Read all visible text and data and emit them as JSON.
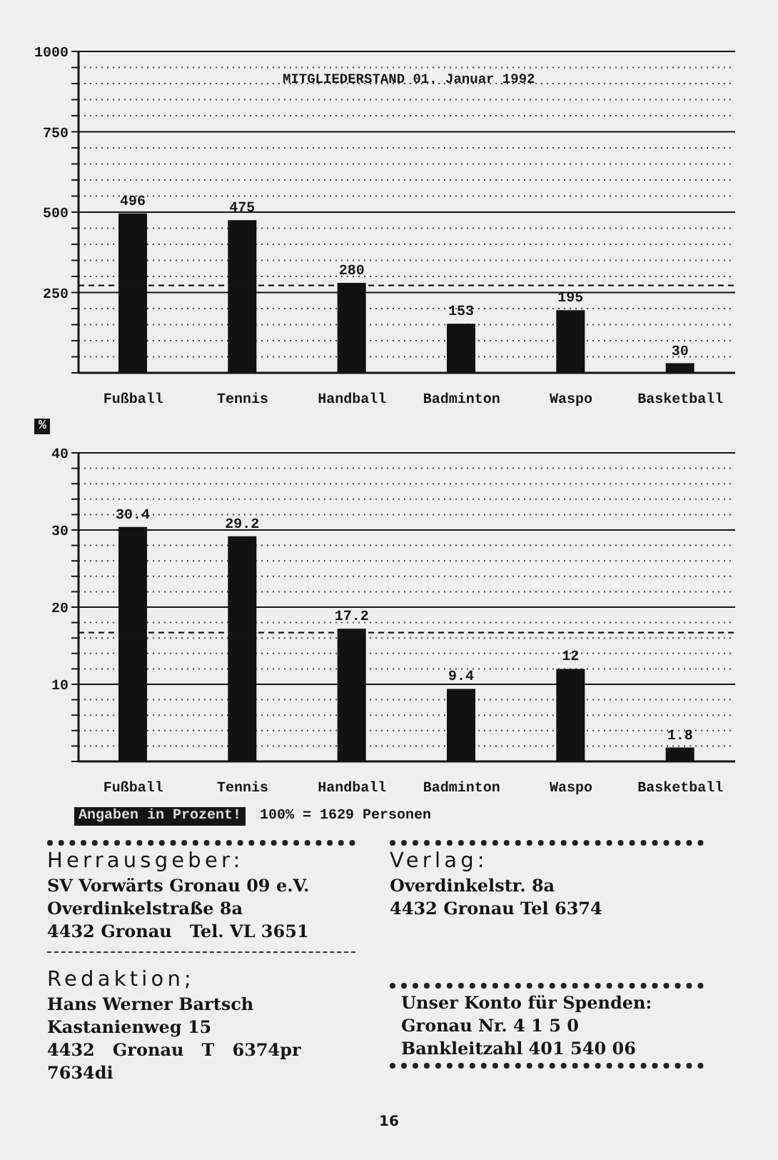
{
  "chart_data": [
    {
      "type": "bar",
      "title": "MITGLIEDERSTAND 01. Januar 1992",
      "categories": [
        "Fußball",
        "Tennis",
        "Handball",
        "Badminton",
        "Waspo",
        "Basketball"
      ],
      "values": [
        496,
        475,
        280,
        153,
        195,
        30
      ],
      "color": "#111111",
      "ylim": [
        0,
        1000
      ],
      "yticks": [
        {
          "value": 0,
          "label": null
        },
        {
          "value": 50,
          "label": null
        },
        {
          "value": 100,
          "label": null
        },
        {
          "value": 150,
          "label": null
        },
        {
          "value": 200,
          "label": null
        },
        250,
        {
          "value": 300,
          "label": null
        },
        {
          "value": 350,
          "label": null
        },
        {
          "value": 400,
          "label": null
        },
        {
          "value": 450,
          "label": null
        },
        500,
        {
          "value": 550,
          "label": null
        },
        {
          "value": 600,
          "label": null
        },
        {
          "value": 650,
          "label": null
        },
        {
          "value": 700,
          "label": null
        },
        750,
        {
          "value": 800,
          "label": null
        },
        {
          "value": 850,
          "label": null
        },
        {
          "value": 900,
          "label": null
        },
        {
          "value": 950,
          "label": null
        },
        1000
      ],
      "grid": "y",
      "data_labels": true,
      "ref_lines": [
        {
          "axis": "y",
          "value": 272,
          "line_style": "dashed"
        }
      ]
    },
    {
      "type": "bar",
      "ylabel": "%",
      "categories": [
        "Fußball",
        "Tennis",
        "Handball",
        "Badminton",
        "Waspo",
        "Basketball"
      ],
      "values": [
        30.4,
        29.2,
        17.2,
        9.4,
        12,
        1.8
      ],
      "color": "#111111",
      "ylim": [
        0,
        40
      ],
      "yticks": [
        {
          "value": 0,
          "label": null
        },
        {
          "value": 2,
          "label": null
        },
        {
          "value": 4,
          "label": null
        },
        {
          "value": 6,
          "label": null
        },
        {
          "value": 8,
          "label": null
        },
        10,
        {
          "value": 12,
          "label": null
        },
        {
          "value": 14,
          "label": null
        },
        {
          "value": 16,
          "label": null
        },
        {
          "value": 18,
          "label": null
        },
        20,
        {
          "value": 22,
          "label": null
        },
        {
          "value": 24,
          "label": null
        },
        {
          "value": 26,
          "label": null
        },
        {
          "value": 28,
          "label": null
        },
        30,
        {
          "value": 32,
          "label": null
        },
        {
          "value": 34,
          "label": null
        },
        {
          "value": 36,
          "label": null
        },
        {
          "value": 38,
          "label": null
        },
        40
      ],
      "grid": "y",
      "data_labels": true,
      "ref_lines": [
        {
          "axis": "y",
          "value": 16.7,
          "line_style": "dashed"
        }
      ],
      "annotations": [
        "Angaben in Prozent!",
        "100% = 1629 Personen"
      ]
    },
    {
      "type": "other",
      "title": "Herrausgeber:",
      "annotations": [
        "SV Vorwärts Gronau 09 e.V.",
        "Overdinkelstraße 8a",
        "4432 Gronau   Tel. VL 3651"
      ]
    },
    {
      "type": "other",
      "title": "Verlag:",
      "annotations": [
        "Overdinkelstr. 8a",
        "4432 Gronau Tel 6374"
      ]
    },
    {
      "type": "other",
      "title": "Redaktion;",
      "annotations": [
        "Hans Werner Bartsch",
        "Kastanienweg 15",
        "4432   Gronau   T   6374pr",
        "7634di"
      ]
    },
    {
      "type": "other",
      "annotations": [
        "Unser Konto für Spenden:",
        "Gronau Nr. 4 1 5 0",
        "Bankleitzahl 401 540 06"
      ]
    },
    {
      "type": "other",
      "annotations": [
        "16"
      ]
    }
  ]
}
